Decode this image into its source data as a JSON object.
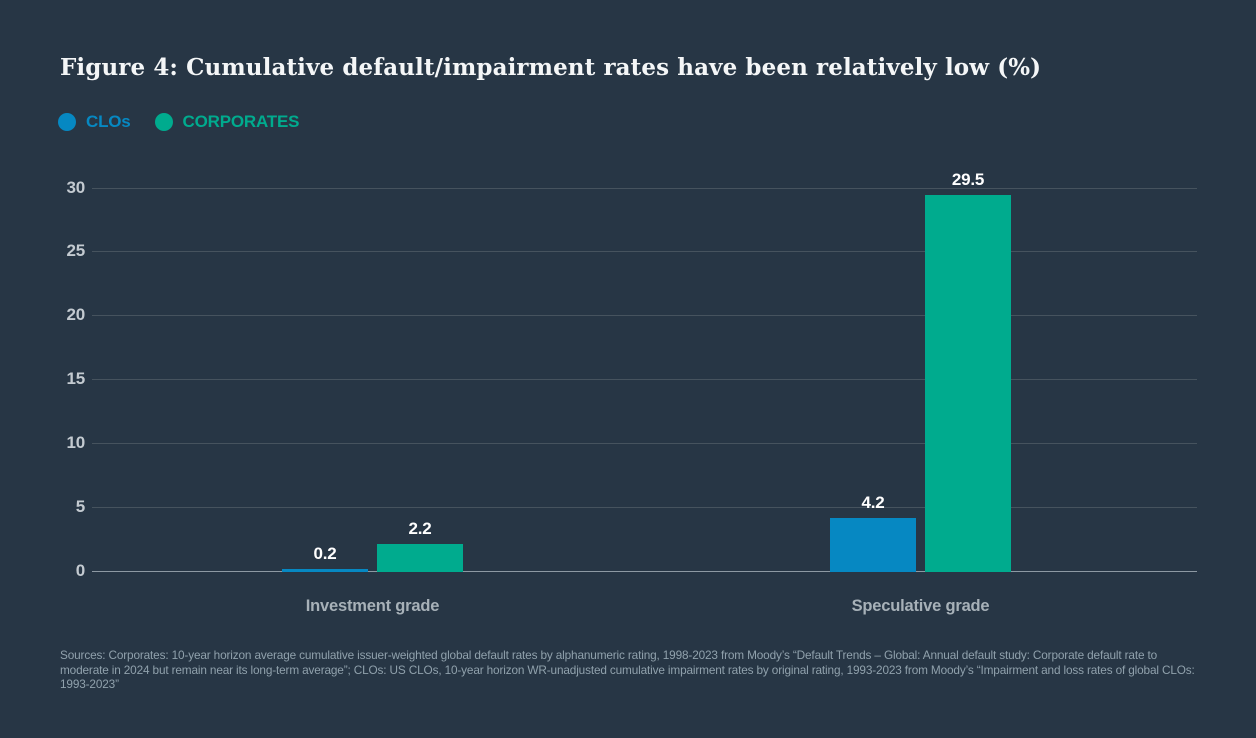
{
  "title": "Figure 4: Cumulative default/impairment rates have been relatively low (%)",
  "legend": {
    "items": [
      {
        "label": "CLOs",
        "color": "#0688c2"
      },
      {
        "label": "CORPORATES",
        "color": "#00ab8e"
      }
    ]
  },
  "source_note": "Sources: Corporates: 10-year horizon average cumulative issuer-weighted global default rates by alphanumeric rating, 1998-2023 from Moody’s “Default Trends – Global: Annual default study: Corporate default rate to moderate in 2024 but remain near its long-term average”; CLOs: US CLOs, 10-year horizon WR-unadjusted cumulative impairment rates by original rating, 1993-2023 from Moody’s “Impairment and loss rates of global CLOs: 1993-2023”",
  "chart_data": {
    "type": "bar",
    "categories": [
      "Investment grade",
      "Speculative grade"
    ],
    "series": [
      {
        "name": "CLOs",
        "color": "#0688c2",
        "values": [
          0.2,
          4.2
        ]
      },
      {
        "name": "CORPORATES",
        "color": "#00ab8e",
        "values": [
          2.2,
          29.5
        ]
      }
    ],
    "value_labels": [
      [
        "0.2",
        "4.2"
      ],
      [
        "2.2",
        "29.5"
      ]
    ],
    "title": "Figure 4: Cumulative default/impairment rates have been relatively low (%)",
    "xlabel": "",
    "ylabel": "",
    "ylim": [
      0,
      30
    ],
    "yticks": [
      0,
      5,
      10,
      15,
      20,
      25,
      30
    ],
    "grid": true,
    "legend_position": "top-left",
    "colors": {
      "background": "#273645",
      "gridline": "#46535e",
      "zero_line": "#8d99a3",
      "tick_text": "#c3cad0",
      "category_text": "#a7b1b8",
      "value_text": "#ffffff",
      "title_text": "#f4f6f7",
      "source_text": "#90a1ac"
    }
  }
}
